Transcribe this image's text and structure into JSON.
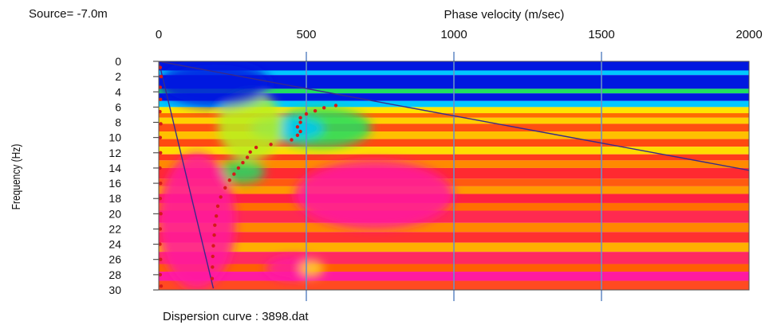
{
  "header": {
    "source_label": "Source= -7.0m"
  },
  "footer": {
    "dispersion_label": "Dispersion curve : 3898.dat"
  },
  "chart_data": {
    "type": "heatmap",
    "xlabel": "Phase velocity (m/sec)",
    "ylabel": "Frequency (Hz)",
    "xlim": [
      0,
      2000
    ],
    "ylim": [
      0,
      30
    ],
    "x_axis_position": "top",
    "y_axis_inverted": true,
    "x_ticks": [
      0,
      500,
      1000,
      1500,
      2000
    ],
    "y_ticks": [
      0,
      2,
      4,
      6,
      8,
      10,
      12,
      14,
      16,
      18,
      20,
      22,
      24,
      26,
      28,
      30
    ],
    "grid": "vertical lines at x ticks",
    "colorscale": [
      "#0018e0",
      "#00c8ff",
      "#20e060",
      "#b8f020",
      "#ffff00",
      "#ffc000",
      "#ff3a1a",
      "#ff1aa0"
    ],
    "colorscale_note": "low amplitude (blue) to high amplitude (red/magenta)",
    "bands": [
      {
        "f": [
          0,
          1.2
        ],
        "color": "#0018e0"
      },
      {
        "f": [
          1.2,
          1.8
        ],
        "color": "#00c8ff"
      },
      {
        "f": [
          1.8,
          3.6
        ],
        "color": "#0018e0"
      },
      {
        "f": [
          3.6,
          4.2
        ],
        "color": "#20e060"
      },
      {
        "f": [
          4.2,
          5.2
        ],
        "color": "#0018e0"
      },
      {
        "f": [
          5.2,
          6.0
        ],
        "color": "#00c8ff"
      },
      {
        "f": [
          6.0,
          6.8
        ],
        "color": "#ffe400"
      },
      {
        "f": [
          6.8,
          7.4
        ],
        "color": "#ff6a00"
      },
      {
        "f": [
          7.4,
          8.2
        ],
        "color": "#ffd000"
      },
      {
        "f": [
          8.2,
          9.2
        ],
        "color": "#ff5010"
      },
      {
        "f": [
          9.2,
          10.2
        ],
        "color": "#ffc000"
      },
      {
        "f": [
          10.2,
          11.2
        ],
        "color": "#ff4a10"
      },
      {
        "f": [
          11.2,
          12.2
        ],
        "color": "#ffdc00"
      },
      {
        "f": [
          12.2,
          13.0
        ],
        "color": "#ff3a1a"
      },
      {
        "f": [
          13.0,
          14.0
        ],
        "color": "#ff8a00"
      },
      {
        "f": [
          14.0,
          15.4
        ],
        "color": "#ff2a30"
      },
      {
        "f": [
          15.4,
          16.4
        ],
        "color": "#ff5a10"
      },
      {
        "f": [
          16.4,
          17.4
        ],
        "color": "#ff9a00"
      },
      {
        "f": [
          17.4,
          18.6
        ],
        "color": "#ff2040"
      },
      {
        "f": [
          18.6,
          19.6
        ],
        "color": "#ff7000"
      },
      {
        "f": [
          19.6,
          21.2
        ],
        "color": "#ff2a50"
      },
      {
        "f": [
          21.2,
          22.4
        ],
        "color": "#ff8800"
      },
      {
        "f": [
          22.4,
          23.8
        ],
        "color": "#ff3030"
      },
      {
        "f": [
          23.8,
          25.0
        ],
        "color": "#ffb000"
      },
      {
        "f": [
          25.0,
          26.6
        ],
        "color": "#ff2a60"
      },
      {
        "f": [
          26.6,
          27.6
        ],
        "color": "#ff6000"
      },
      {
        "f": [
          27.6,
          28.8
        ],
        "color": "#ff1aa0"
      },
      {
        "f": [
          28.8,
          30.0
        ],
        "color": "#ff4a20"
      }
    ],
    "blobs": [
      {
        "v": [
          380,
          720
        ],
        "f": [
          6.0,
          11.4
        ],
        "color": "#20e060"
      },
      {
        "v": [
          310,
          560
        ],
        "f": [
          7.2,
          10.4
        ],
        "color": "#00c8ff"
      },
      {
        "v": [
          200,
          420
        ],
        "f": [
          4.0,
          13.0
        ],
        "color": "#b8f020"
      },
      {
        "v": [
          0,
          380
        ],
        "f": [
          0.0,
          6.0
        ],
        "color": "#0018e0"
      },
      {
        "v": [
          200,
          360
        ],
        "f": [
          13.0,
          16.0
        ],
        "color": "#20e060"
      },
      {
        "v": [
          360,
          560
        ],
        "f": [
          25.5,
          28.8
        ],
        "color": "#ff1aa0"
      },
      {
        "v": [
          480,
          560
        ],
        "f": [
          26.2,
          28.2
        ],
        "color": "#ffe400"
      },
      {
        "v": [
          0,
          260
        ],
        "f": [
          12.0,
          30.0
        ],
        "color": "#ff1aa0"
      },
      {
        "v": [
          460,
          1000
        ],
        "f": [
          13.0,
          22.0
        ],
        "color": "#ff1aa0"
      }
    ],
    "reference_lines": [
      {
        "name": "",
        "points": [
          [
            0,
            0
          ],
          [
            2000,
            14.3
          ]
        ],
        "color": "#3a2a8a"
      },
      {
        "name": "",
        "points": [
          [
            0,
            0
          ],
          [
            185,
            29.8
          ]
        ],
        "color": "#3a2a8a"
      }
    ],
    "picked_points": [
      {
        "v": 600,
        "f": 5.8
      },
      {
        "v": 560,
        "f": 6.1
      },
      {
        "v": 530,
        "f": 6.5
      },
      {
        "v": 500,
        "f": 6.9
      },
      {
        "v": 480,
        "f": 7.4
      },
      {
        "v": 480,
        "f": 8.0
      },
      {
        "v": 470,
        "f": 8.6
      },
      {
        "v": 480,
        "f": 9.2
      },
      {
        "v": 470,
        "f": 9.7
      },
      {
        "v": 450,
        "f": 10.3
      },
      {
        "v": 380,
        "f": 10.9
      },
      {
        "v": 330,
        "f": 11.3
      },
      {
        "v": 310,
        "f": 11.9
      },
      {
        "v": 300,
        "f": 12.6
      },
      {
        "v": 285,
        "f": 13.3
      },
      {
        "v": 270,
        "f": 14.0
      },
      {
        "v": 255,
        "f": 14.8
      },
      {
        "v": 240,
        "f": 15.6
      },
      {
        "v": 225,
        "f": 16.6
      },
      {
        "v": 210,
        "f": 17.8
      },
      {
        "v": 200,
        "f": 19.0
      },
      {
        "v": 195,
        "f": 20.3
      },
      {
        "v": 190,
        "f": 21.5
      },
      {
        "v": 188,
        "f": 22.8
      },
      {
        "v": 185,
        "f": 24.2
      },
      {
        "v": 183,
        "f": 25.6
      },
      {
        "v": 182,
        "f": 27.0
      },
      {
        "v": 181,
        "f": 28.5
      },
      {
        "v": 5,
        "f": 0.8
      },
      {
        "v": 8,
        "f": 2.0
      },
      {
        "v": 5,
        "f": 3.4
      },
      {
        "v": 6,
        "f": 5.0
      },
      {
        "v": 4,
        "f": 6.6
      },
      {
        "v": 7,
        "f": 8.2
      },
      {
        "v": 5,
        "f": 10.0
      },
      {
        "v": 6,
        "f": 12.0
      },
      {
        "v": 4,
        "f": 14.0
      },
      {
        "v": 6,
        "f": 16.0
      },
      {
        "v": 5,
        "f": 18.0
      },
      {
        "v": 7,
        "f": 20.0
      },
      {
        "v": 5,
        "f": 22.0
      },
      {
        "v": 4,
        "f": 24.0
      },
      {
        "v": 6,
        "f": 26.0
      },
      {
        "v": 5,
        "f": 28.0
      },
      {
        "v": 8,
        "f": 29.5
      }
    ],
    "picked_color": "#d41a1a"
  }
}
